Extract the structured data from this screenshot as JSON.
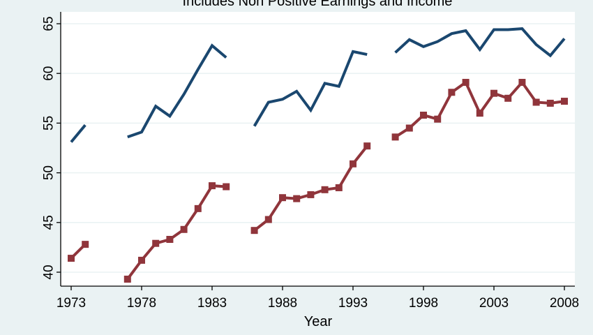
{
  "chart_data": {
    "type": "line",
    "title": "Includes Non Positive Earnings and Income",
    "xlabel": "Year",
    "ylabel": "",
    "xlim": [
      1973,
      2008
    ],
    "ylim": [
      39,
      65
    ],
    "x_ticks": [
      1973,
      1978,
      1983,
      1988,
      1993,
      1998,
      2003,
      2008
    ],
    "y_ticks": [
      40,
      45,
      50,
      55,
      60,
      65
    ],
    "grid": true,
    "legend": "none",
    "series": [
      {
        "color": "#1a476f",
        "marker": "none",
        "points": [
          [
            1973,
            53.1
          ],
          [
            1974,
            54.8
          ],
          [
            1975,
            null
          ],
          [
            1976,
            null
          ],
          [
            1977,
            53.6
          ],
          [
            1978,
            54.1
          ],
          [
            1979,
            56.7
          ],
          [
            1980,
            55.7
          ],
          [
            1981,
            57.9
          ],
          [
            1982,
            60.4
          ],
          [
            1983,
            62.8
          ],
          [
            1984,
            61.6
          ],
          [
            1985,
            null
          ],
          [
            1986,
            54.7
          ],
          [
            1987,
            57.1
          ],
          [
            1988,
            57.4
          ],
          [
            1989,
            58.2
          ],
          [
            1990,
            56.3
          ],
          [
            1991,
            59.0
          ],
          [
            1992,
            58.7
          ],
          [
            1993,
            62.2
          ],
          [
            1994,
            61.9
          ],
          [
            1995,
            null
          ],
          [
            1996,
            62.1
          ],
          [
            1997,
            63.4
          ],
          [
            1998,
            62.7
          ],
          [
            1999,
            63.2
          ],
          [
            2000,
            64.0
          ],
          [
            2001,
            64.3
          ],
          [
            2002,
            62.4
          ],
          [
            2003,
            64.4
          ],
          [
            2004,
            64.4
          ],
          [
            2005,
            64.5
          ],
          [
            2006,
            62.9
          ],
          [
            2007,
            61.8
          ],
          [
            2008,
            63.5
          ]
        ]
      },
      {
        "color": "#90353b",
        "marker": "square",
        "points": [
          [
            1973,
            41.4
          ],
          [
            1974,
            42.8
          ],
          [
            1975,
            null
          ],
          [
            1976,
            null
          ],
          [
            1977,
            39.3
          ],
          [
            1978,
            41.2
          ],
          [
            1979,
            42.9
          ],
          [
            1980,
            43.3
          ],
          [
            1981,
            44.3
          ],
          [
            1982,
            46.4
          ],
          [
            1983,
            48.7
          ],
          [
            1984,
            48.6
          ],
          [
            1985,
            null
          ],
          [
            1986,
            44.2
          ],
          [
            1987,
            45.3
          ],
          [
            1988,
            47.5
          ],
          [
            1989,
            47.4
          ],
          [
            1990,
            47.8
          ],
          [
            1991,
            48.3
          ],
          [
            1992,
            48.5
          ],
          [
            1993,
            50.9
          ],
          [
            1994,
            52.7
          ],
          [
            1995,
            null
          ],
          [
            1996,
            53.6
          ],
          [
            1997,
            54.5
          ],
          [
            1998,
            55.8
          ],
          [
            1999,
            55.4
          ],
          [
            2000,
            58.1
          ],
          [
            2001,
            59.1
          ],
          [
            2002,
            56.0
          ],
          [
            2003,
            58.0
          ],
          [
            2004,
            57.5
          ],
          [
            2005,
            59.1
          ],
          [
            2006,
            57.1
          ],
          [
            2007,
            57.0
          ],
          [
            2008,
            57.2
          ]
        ]
      }
    ],
    "colors": {
      "background": "#eaf2f3",
      "plot": "#ffffff",
      "grid": "#eaf2f3"
    }
  }
}
